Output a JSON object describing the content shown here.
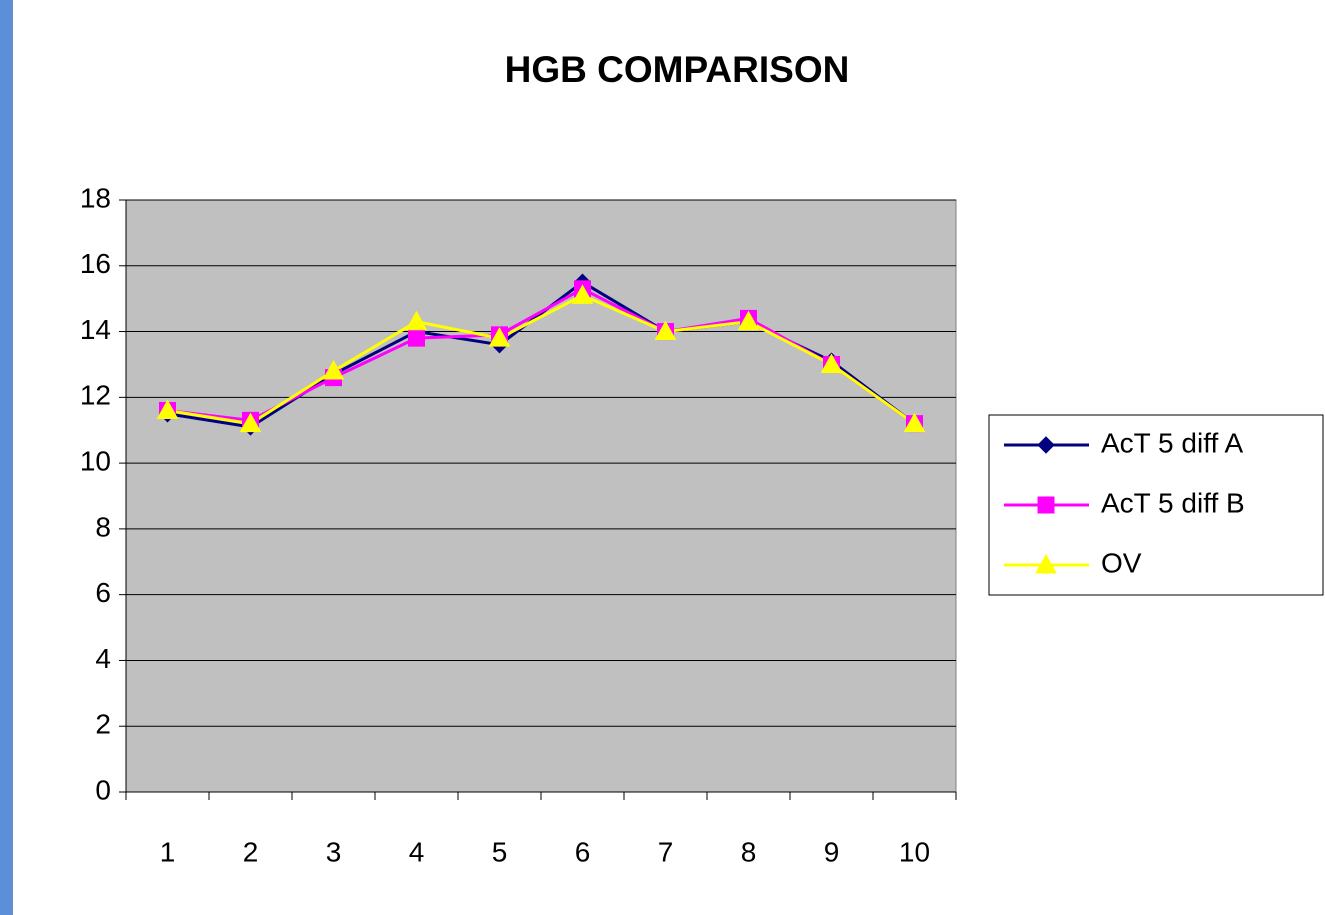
{
  "chart_data": {
    "type": "line",
    "title": "HGB COMPARISON",
    "categories": [
      "1",
      "2",
      "3",
      "4",
      "5",
      "6",
      "7",
      "8",
      "9",
      "10"
    ],
    "series": [
      {
        "name": "AcT 5 diff A",
        "color": "#000080",
        "marker": "diamond",
        "values": [
          11.5,
          11.1,
          12.7,
          14.0,
          13.6,
          15.5,
          14.0,
          14.3,
          13.1,
          11.2
        ]
      },
      {
        "name": "AcT 5 diff B",
        "color": "#ff00ff",
        "marker": "square",
        "values": [
          11.6,
          11.3,
          12.6,
          13.8,
          13.9,
          15.3,
          14.0,
          14.4,
          13.0,
          11.2
        ]
      },
      {
        "name": "OV",
        "color": "#ffff00",
        "marker": "triangle",
        "values": [
          11.6,
          11.2,
          12.8,
          14.3,
          13.8,
          15.1,
          14.0,
          14.3,
          13.0,
          11.2
        ]
      }
    ],
    "ylim": [
      0,
      18
    ],
    "yticks": [
      0,
      2,
      4,
      6,
      8,
      10,
      12,
      14,
      16,
      18
    ],
    "grid": true,
    "legend": "right",
    "plot_background": "#c0c0c0"
  }
}
